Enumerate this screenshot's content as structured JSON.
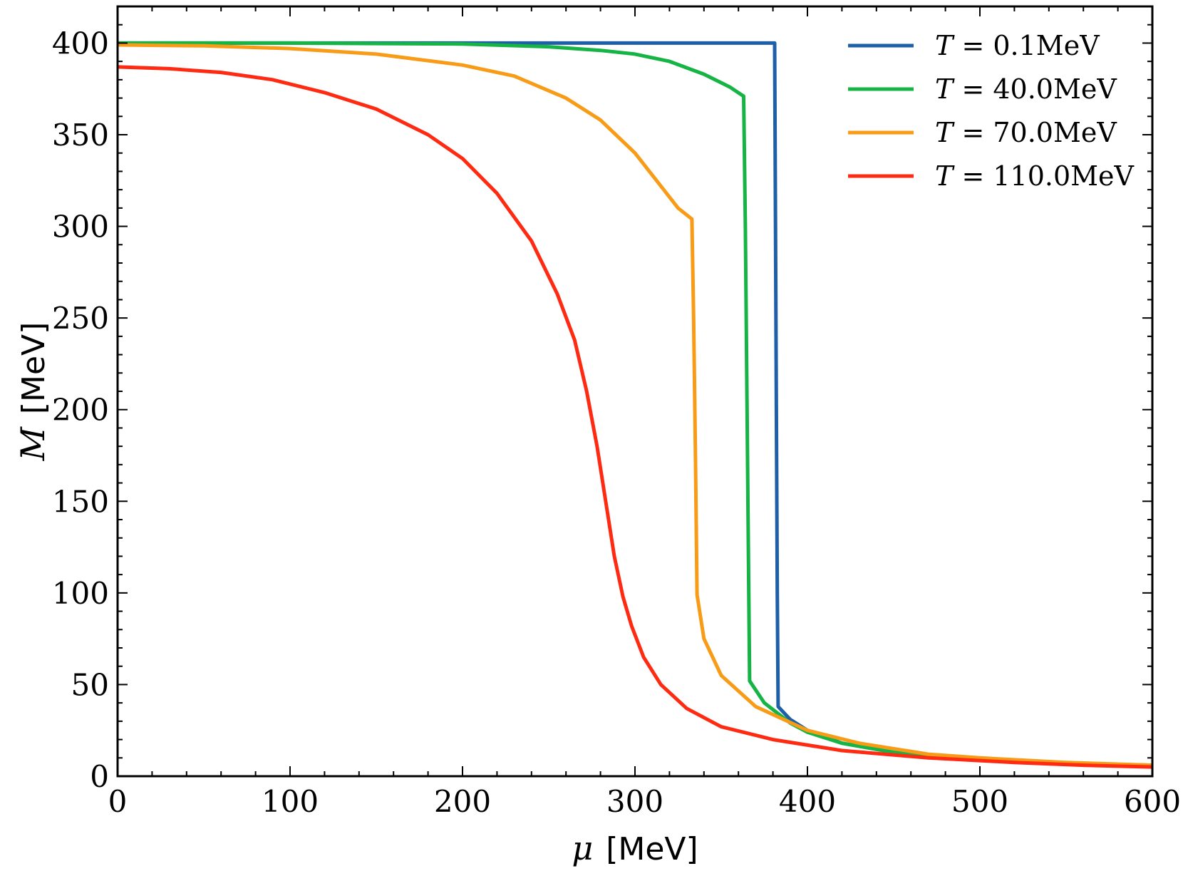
{
  "chart_data": {
    "type": "line",
    "title": "",
    "xlabel": {
      "symbol": "μ",
      "unit": "[MeV]"
    },
    "ylabel": {
      "symbol": "M",
      "unit": "[MeV]"
    },
    "xlim": [
      0,
      600
    ],
    "ylim": [
      0,
      420
    ],
    "xticks": [
      0,
      100,
      200,
      300,
      400,
      500,
      600
    ],
    "yticks": [
      0,
      50,
      100,
      150,
      200,
      250,
      300,
      350,
      400
    ],
    "grid": false,
    "legend_position": "top-right",
    "series": [
      {
        "name": "T = 0.1MeV",
        "symbol": "T",
        "rest": " = 0.1MeV",
        "color": "#1f5fa8",
        "points": [
          [
            0,
            400
          ],
          [
            100,
            400
          ],
          [
            200,
            400
          ],
          [
            300,
            400
          ],
          [
            381,
            400
          ],
          [
            381.5,
            300
          ],
          [
            382,
            200
          ],
          [
            382.5,
            100
          ],
          [
            383,
            38
          ],
          [
            390,
            31
          ],
          [
            400,
            25
          ],
          [
            420,
            18
          ],
          [
            450,
            13
          ],
          [
            500,
            9
          ],
          [
            550,
            7
          ],
          [
            600,
            6
          ]
        ]
      },
      {
        "name": "T = 40.0MeV",
        "symbol": "T",
        "rest": " = 40.0MeV",
        "color": "#16b444",
        "points": [
          [
            0,
            400
          ],
          [
            100,
            400
          ],
          [
            200,
            399.5
          ],
          [
            250,
            398
          ],
          [
            280,
            396
          ],
          [
            300,
            394
          ],
          [
            320,
            390
          ],
          [
            340,
            383
          ],
          [
            355,
            376
          ],
          [
            363,
            371
          ],
          [
            364,
            300
          ],
          [
            365,
            200
          ],
          [
            366,
            100
          ],
          [
            366.5,
            52
          ],
          [
            375,
            40
          ],
          [
            390,
            29
          ],
          [
            400,
            24
          ],
          [
            420,
            18
          ],
          [
            450,
            13
          ],
          [
            500,
            9
          ],
          [
            550,
            7
          ],
          [
            600,
            6
          ]
        ]
      },
      {
        "name": "T = 70.0MeV",
        "symbol": "T",
        "rest": " = 70.0MeV",
        "color": "#f89b16",
        "points": [
          [
            0,
            399
          ],
          [
            50,
            398.5
          ],
          [
            100,
            397
          ],
          [
            150,
            394
          ],
          [
            200,
            388
          ],
          [
            230,
            382
          ],
          [
            260,
            370
          ],
          [
            280,
            358
          ],
          [
            300,
            340
          ],
          [
            315,
            322
          ],
          [
            325,
            310
          ],
          [
            333,
            304
          ],
          [
            334,
            250
          ],
          [
            335,
            180
          ],
          [
            336,
            99
          ],
          [
            340,
            75
          ],
          [
            350,
            55
          ],
          [
            370,
            38
          ],
          [
            400,
            25
          ],
          [
            430,
            18
          ],
          [
            470,
            12
          ],
          [
            500,
            10
          ],
          [
            550,
            7.5
          ],
          [
            600,
            6
          ]
        ]
      },
      {
        "name": "T = 110.0MeV",
        "symbol": "T",
        "rest": " = 110.0MeV",
        "color": "#ff2a12",
        "points": [
          [
            0,
            387
          ],
          [
            30,
            386
          ],
          [
            60,
            384
          ],
          [
            90,
            380
          ],
          [
            120,
            373
          ],
          [
            150,
            364
          ],
          [
            180,
            350
          ],
          [
            200,
            337
          ],
          [
            220,
            318
          ],
          [
            240,
            292
          ],
          [
            255,
            263
          ],
          [
            265,
            238
          ],
          [
            272,
            210
          ],
          [
            278,
            180
          ],
          [
            283,
            150
          ],
          [
            288,
            120
          ],
          [
            293,
            98
          ],
          [
            298,
            82
          ],
          [
            305,
            65
          ],
          [
            315,
            50
          ],
          [
            330,
            37
          ],
          [
            350,
            27
          ],
          [
            380,
            20
          ],
          [
            420,
            14
          ],
          [
            470,
            10
          ],
          [
            520,
            7.5
          ],
          [
            560,
            6
          ],
          [
            600,
            5
          ]
        ]
      }
    ]
  }
}
